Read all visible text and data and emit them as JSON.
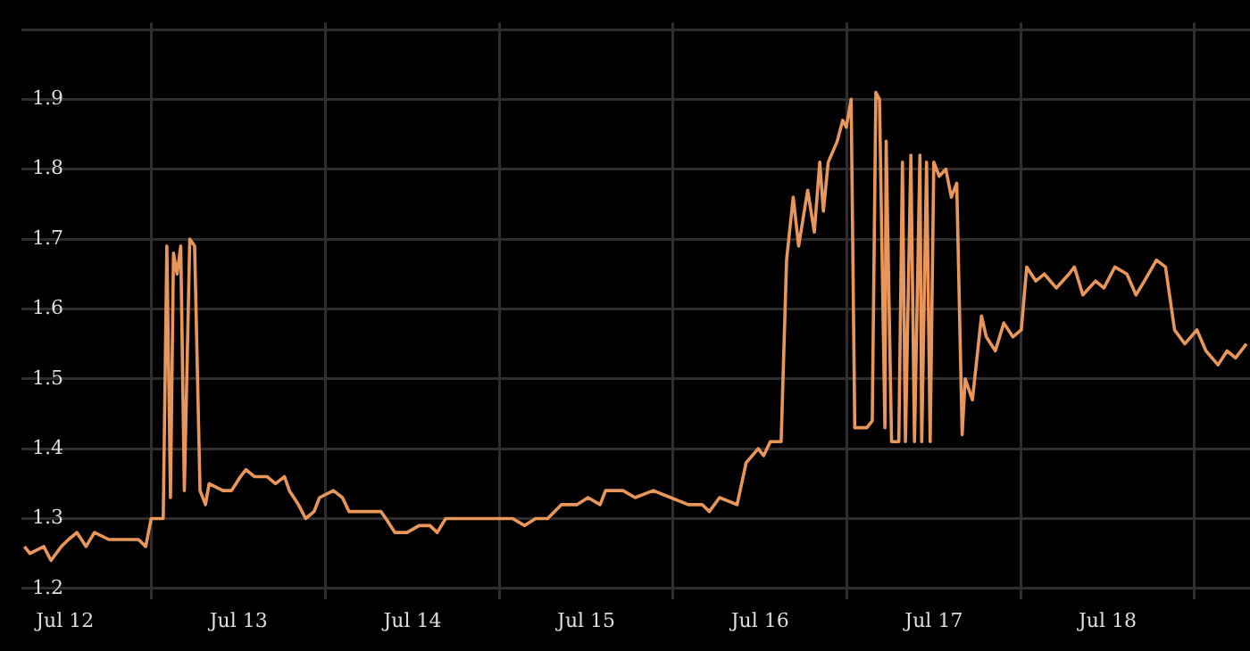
{
  "chart_data": {
    "type": "line",
    "x": [
      "--07-11T18:25",
      "--07-11T19:10",
      "--07-11T21:05",
      "--07-11T22:05",
      "--07-11T23:30",
      "--07-12T00:30",
      "--07-12T01:40",
      "--07-12T02:55",
      "--07-12T04:05",
      "--07-12T06:05",
      "--07-12T08:00",
      "--07-12T10:10",
      "--07-12T11:10",
      "--07-12T11:55",
      "--07-12T12:50",
      "--07-12T13:35",
      "--07-12T14:05",
      "--07-12T14:35",
      "--07-12T15:00",
      "--07-12T15:30",
      "--07-12T16:00",
      "--07-12T16:30",
      "--07-12T17:15",
      "--07-12T17:55",
      "--07-12T18:40",
      "--07-12T19:25",
      "--07-12T19:55",
      "--07-12T21:50",
      "--07-12T23:00",
      "--07-13T00:15",
      "--07-13T01:00",
      "--07-13T02:10",
      "--07-13T03:55",
      "--07-13T05:05",
      "--07-13T06:20",
      "--07-13T07:00",
      "--07-13T08:15",
      "--07-13T09:15",
      "--07-13T10:25",
      "--07-13T11:10",
      "--07-13T13:05",
      "--07-13T14:20",
      "--07-13T15:15",
      "--07-13T16:45",
      "--07-13T18:25",
      "--07-13T19:40",
      "--07-13T20:20",
      "--07-13T21:35",
      "--07-13T23:15",
      "--07-14T00:55",
      "--07-14T02:25",
      "--07-14T03:25",
      "--07-14T04:35",
      "--07-14T06:35",
      "--07-14T08:55",
      "--07-14T10:40",
      "--07-14T12:05",
      "--07-14T13:50",
      "--07-14T15:30",
      "--07-14T17:00",
      "--07-14T18:40",
      "--07-14T20:35",
      "--07-14T22:45",
      "--07-15T00:15",
      "--07-15T01:55",
      "--07-15T02:40",
      "--07-15T05:05",
      "--07-15T06:45",
      "--07-15T09:15",
      "--07-15T11:40",
      "--07-15T14:05",
      "--07-15T16:00",
      "--07-15T17:00",
      "--07-15T18:25",
      "--07-15T20:50",
      "--07-15T22:05",
      "--07-15T23:45",
      "--07-16T00:30",
      "--07-16T01:25",
      "--07-16T02:55",
      "--07-16T03:40",
      "--07-16T04:35",
      "--07-16T05:20",
      "--07-16T06:35",
      "--07-16T07:30",
      "--07-16T08:15",
      "--07-16T08:45",
      "--07-16T09:25",
      "--07-16T10:40",
      "--07-16T11:25",
      "--07-16T11:55",
      "--07-16T12:35",
      "--07-16T13:05",
      "--07-16T14:45",
      "--07-16T15:30",
      "--07-16T16:00",
      "--07-16T16:30",
      "--07-16T17:15",
      "--07-16T17:25",
      "--07-16T18:10",
      "--07-16T19:10",
      "--07-16T19:40",
      "--07-16T20:05",
      "--07-16T20:50",
      "--07-16T21:20",
      "--07-16T22:05",
      "--07-16T22:20",
      "--07-16T23:00",
      "--07-16T23:30",
      "--07-17T00:00",
      "--07-17T00:45",
      "--07-17T01:40",
      "--07-17T02:25",
      "--07-17T03:10",
      "--07-17T03:55",
      "--07-17T04:20",
      "--07-17T05:20",
      "--07-17T06:35",
      "--07-17T07:15",
      "--07-17T08:30",
      "--07-17T09:40",
      "--07-17T10:55",
      "--07-17T12:05",
      "--07-17T12:50",
      "--07-17T14:05",
      "--07-17T15:15",
      "--07-17T16:55",
      "--07-17T18:40",
      "--07-17T19:25",
      "--07-17T20:35",
      "--07-17T22:20",
      "--07-17T23:30",
      "--07-18T01:00",
      "--07-18T02:40",
      "--07-18T03:55",
      "--07-18T05:05",
      "--07-18T06:45",
      "--07-18T08:00",
      "--07-18T09:15",
      "--07-18T10:40",
      "--07-18T12:20",
      "--07-18T13:35",
      "--07-18T15:15",
      "--07-18T16:30",
      "--07-18T17:40",
      "--07-18T19:10"
    ],
    "series": [
      {
        "color": "#e8965a",
        "values": [
          1.26,
          1.25,
          1.26,
          1.24,
          1.26,
          1.27,
          1.28,
          1.26,
          1.28,
          1.27,
          1.27,
          1.27,
          1.26,
          1.3,
          1.3,
          1.3,
          1.69,
          1.33,
          1.68,
          1.65,
          1.69,
          1.34,
          1.7,
          1.69,
          1.34,
          1.32,
          1.35,
          1.34,
          1.34,
          1.36,
          1.37,
          1.36,
          1.36,
          1.35,
          1.36,
          1.34,
          1.32,
          1.3,
          1.31,
          1.33,
          1.34,
          1.33,
          1.31,
          1.31,
          1.31,
          1.31,
          1.3,
          1.28,
          1.28,
          1.29,
          1.29,
          1.28,
          1.3,
          1.3,
          1.3,
          1.3,
          1.3,
          1.3,
          1.29,
          1.3,
          1.3,
          1.32,
          1.32,
          1.33,
          1.32,
          1.34,
          1.34,
          1.33,
          1.34,
          1.33,
          1.32,
          1.32,
          1.31,
          1.33,
          1.32,
          1.38,
          1.4,
          1.39,
          1.41,
          1.41,
          1.67,
          1.76,
          1.69,
          1.77,
          1.71,
          1.81,
          1.74,
          1.81,
          1.84,
          1.87,
          1.86,
          1.9,
          1.43,
          1.43,
          1.44,
          1.91,
          1.9,
          1.43,
          1.84,
          1.41,
          1.41,
          1.81,
          1.41,
          1.82,
          1.41,
          1.82,
          1.41,
          1.81,
          1.41,
          1.81,
          1.79,
          1.8,
          1.76,
          1.78,
          1.42,
          1.5,
          1.47,
          1.59,
          1.56,
          1.54,
          1.58,
          1.56,
          1.57,
          1.66,
          1.64,
          1.65,
          1.63,
          1.65,
          1.66,
          1.62,
          1.64,
          1.63,
          1.66,
          1.65,
          1.62,
          1.64,
          1.67,
          1.66,
          1.57,
          1.55,
          1.57,
          1.54,
          1.52,
          1.54,
          1.53,
          1.55
        ]
      }
    ],
    "xlim": [
      "--07-11T18:00",
      "--07-18T19:40"
    ],
    "xticks": [
      {
        "value": "--07-12",
        "label": "Jul 12"
      },
      {
        "value": "--07-12T12:00",
        "label": null
      },
      {
        "value": "--07-13",
        "label": "Jul 13"
      },
      {
        "value": "--07-13T12:00",
        "label": null
      },
      {
        "value": "--07-14",
        "label": "Jul 14"
      },
      {
        "value": "--07-14T12:00",
        "label": null
      },
      {
        "value": "--07-15",
        "label": "Jul 15"
      },
      {
        "value": "--07-15T12:00",
        "label": null
      },
      {
        "value": "--07-16",
        "label": "Jul 16"
      },
      {
        "value": "--07-16T12:00",
        "label": null
      },
      {
        "value": "--07-17",
        "label": "Jul 17"
      },
      {
        "value": "--07-17T12:00",
        "label": null
      },
      {
        "value": "--07-18",
        "label": "Jul 18"
      },
      {
        "value": "--07-18T12:00",
        "label": null
      }
    ],
    "ylim": [
      1.185,
      2.01
    ],
    "yticks": [
      1.2,
      1.3,
      1.4,
      1.5,
      1.6,
      1.7,
      1.8,
      1.9,
      {
        "value": 2,
        "label": null
      }
    ],
    "grid": true,
    "legend": false,
    "marker": "none",
    "line_style": "solid"
  }
}
